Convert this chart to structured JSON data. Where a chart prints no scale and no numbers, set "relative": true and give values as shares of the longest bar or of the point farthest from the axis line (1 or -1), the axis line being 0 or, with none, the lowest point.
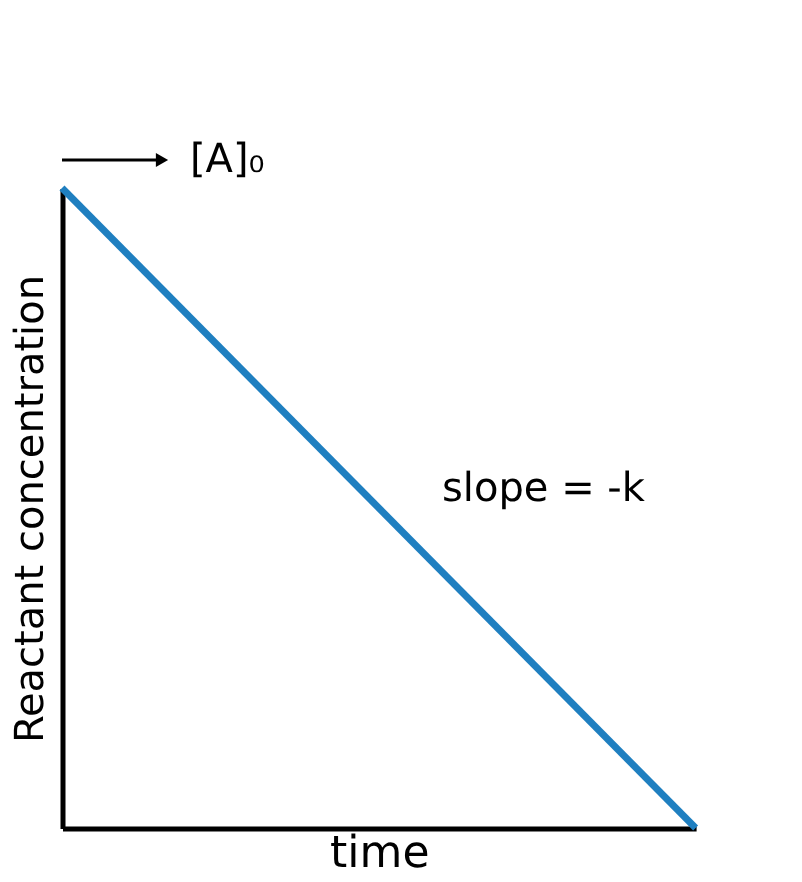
{
  "chart_data": {
    "type": "line",
    "relative": true,
    "categories": [
      null,
      null
    ],
    "series": [
      {
        "color": "#1f7fc0",
        "values": [
          1,
          0
        ]
      }
    ],
    "xlabel": "time",
    "ylabel": "Reactant concentration",
    "annotations": [
      "[A]₀",
      "slope = -k"
    ],
    "tick_labels": false,
    "grid": false,
    "marker": "none",
    "line_style": "solid"
  }
}
